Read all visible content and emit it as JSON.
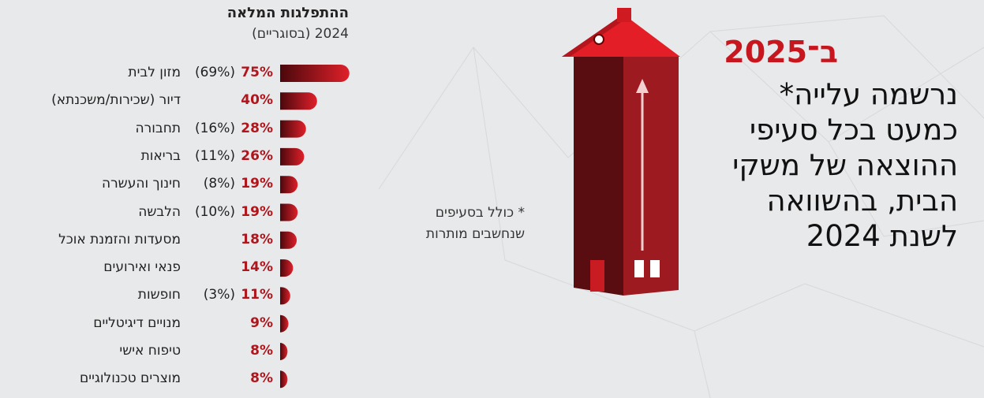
{
  "chart_data": {
    "type": "bar",
    "title": "ההתפלגות המלאה",
    "subtitle": "2024 (בסוגריים)",
    "categories": [
      "מזון לבית",
      "דיור (שכירות/משכנתא)",
      "תחבורה",
      "בריאות",
      "חינוך והעשרה",
      "הלבשה",
      "מסעדות והזמנת אוכל",
      "פנאי ואירועים",
      "חופשות",
      "מנויים דיגיטליים",
      "טיפוח אישי",
      "מוצרים טכנולוגיים"
    ],
    "values": [
      75,
      40,
      28,
      26,
      19,
      19,
      18,
      14,
      11,
      9,
      8,
      8
    ],
    "value_labels": [
      "75%",
      "40%",
      "28%",
      "26%",
      "19%",
      "19%",
      "18%",
      "14%",
      "11%",
      "9%",
      "8%",
      "8%"
    ],
    "prev_values": [
      69,
      null,
      16,
      11,
      8,
      10,
      null,
      null,
      3,
      null,
      null,
      null
    ],
    "prev_value_labels": [
      "(69%)",
      null,
      "(16%)",
      "(11%)",
      "(8%)",
      "(10%)",
      null,
      null,
      "(3%)",
      null,
      null,
      null
    ],
    "color": "#c8161e",
    "headline_year": "ב־2025",
    "headline_lines": [
      "נרשמה עלייה*",
      "כמעט בכל סעיפי",
      "ההוצאה של משקי",
      "הבית, בהשוואה",
      "לשנת 2024"
    ],
    "footnote_lines": [
      "* כולל בסעיפים",
      "שנחשבים מותרות"
    ]
  }
}
